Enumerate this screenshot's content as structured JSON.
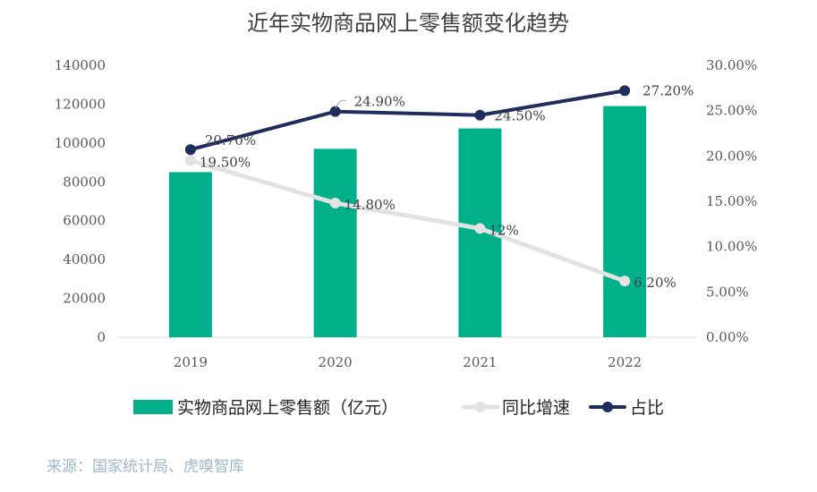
{
  "chart_data": {
    "type": "bar+line",
    "title": "近年实物商品网上零售额变化趋势",
    "categories": [
      "2019",
      "2020",
      "2021",
      "2022"
    ],
    "bar_series": {
      "name": "实物商品网上零售额（亿元）",
      "values": [
        85000,
        97000,
        107500,
        119000
      ],
      "color": "#00b08b"
    },
    "line_series": [
      {
        "name": "同比增速",
        "values": [
          19.5,
          14.8,
          12,
          6.2
        ],
        "labels": [
          "19.50%",
          "14.80%",
          "12%",
          "6.20%"
        ],
        "color": "#e2e2e2"
      },
      {
        "name": "占比",
        "values": [
          20.7,
          24.9,
          24.5,
          27.2
        ],
        "labels": [
          "20.70%",
          "24.90%",
          "24.50%",
          "27.20%"
        ],
        "color": "#1f2d5c"
      }
    ],
    "y_left": {
      "range": [
        0,
        140000
      ],
      "ticks": [
        "0",
        "20000",
        "40000",
        "60000",
        "80000",
        "100000",
        "120000",
        "140000"
      ]
    },
    "y_right": {
      "range": [
        0,
        30
      ],
      "ticks": [
        "0.00%",
        "5.00%",
        "10.00%",
        "15.00%",
        "20.00%",
        "25.00%",
        "30.00%"
      ]
    },
    "grid": false,
    "legend_position": "bottom"
  },
  "source_note": "来源：国家统计局、虎嗅智库"
}
